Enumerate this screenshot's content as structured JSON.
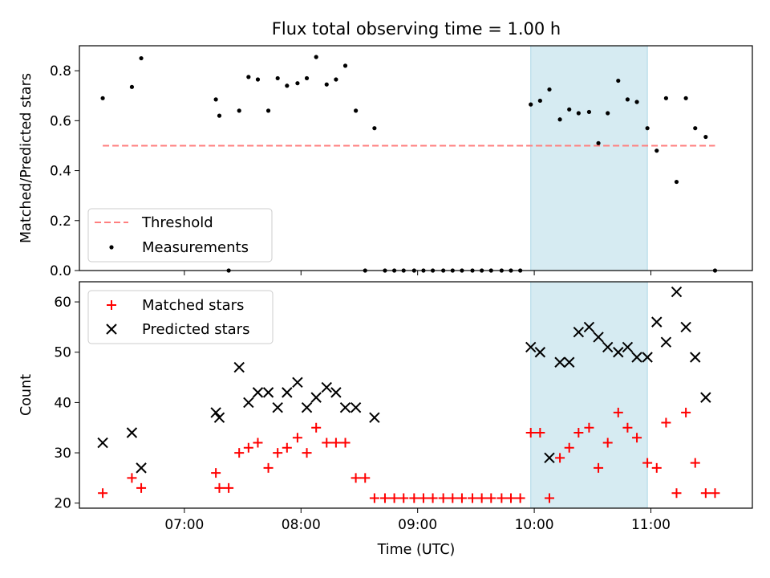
{
  "figure": {
    "title": "Flux total observing time = 1.00 h",
    "xlabel": "Time (UTC)",
    "shade_color": "#add8e6",
    "threshold_color": "#ff7f7f",
    "measurement_color": "#000000",
    "matched_color": "#ff0000",
    "predicted_color": "#000000"
  },
  "chart_data": [
    {
      "type": "scatter",
      "panel": "top",
      "ylabel": "Matched/Predicted stars",
      "ylim": [
        0,
        0.9
      ],
      "yticks": [
        0.0,
        0.2,
        0.4,
        0.6,
        0.8
      ],
      "ytick_labels": [
        "0.0",
        "0.2",
        "0.4",
        "0.6",
        "0.8"
      ],
      "x_unit": "hours UTC",
      "xlim": [
        6.1,
        11.87
      ],
      "xticks": [
        7,
        8,
        9,
        10,
        11
      ],
      "xtick_labels": [
        "07:00",
        "08:00",
        "09:00",
        "10:00",
        "11:00"
      ],
      "shaded_interval": [
        9.97,
        10.97
      ],
      "threshold": {
        "name": "Threshold",
        "y": 0.5,
        "x_range": [
          6.3,
          11.55
        ],
        "style": "dashed"
      },
      "legend": {
        "position": "lower-left",
        "entries": [
          "Threshold",
          "Measurements"
        ]
      },
      "series": [
        {
          "name": "Measurements",
          "marker": "dot",
          "x": [
            6.3,
            6.55,
            6.63,
            7.27,
            7.3,
            7.38,
            7.47,
            7.55,
            7.63,
            7.72,
            7.8,
            7.88,
            7.97,
            8.05,
            8.13,
            8.22,
            8.3,
            8.38,
            8.47,
            8.55,
            8.63,
            8.72,
            8.8,
            8.88,
            8.97,
            9.05,
            9.13,
            9.22,
            9.3,
            9.38,
            9.47,
            9.55,
            9.63,
            9.72,
            9.8,
            9.88,
            9.97,
            10.05,
            10.13,
            10.22,
            10.3,
            10.38,
            10.47,
            10.55,
            10.63,
            10.72,
            10.8,
            10.88,
            10.97,
            11.05,
            11.13,
            11.22,
            11.3,
            11.38,
            11.47,
            11.55
          ],
          "y": [
            0.69,
            0.735,
            0.85,
            0.685,
            0.62,
            0.0,
            0.64,
            0.775,
            0.765,
            0.64,
            0.77,
            0.74,
            0.75,
            0.77,
            0.855,
            0.745,
            0.765,
            0.82,
            0.64,
            0.0,
            0.57,
            0.0,
            0.0,
            0.0,
            0.0,
            0.0,
            0.0,
            0.0,
            0.0,
            0.0,
            0.0,
            0.0,
            0.0,
            0.0,
            0.0,
            0.0,
            0.665,
            0.68,
            0.725,
            0.605,
            0.645,
            0.63,
            0.635,
            0.51,
            0.63,
            0.76,
            0.685,
            0.675,
            0.57,
            0.48,
            0.69,
            0.355,
            0.69,
            0.57,
            0.535,
            0.0
          ]
        }
      ]
    },
    {
      "type": "scatter",
      "panel": "bottom",
      "ylabel": "Count",
      "ylim": [
        19,
        64
      ],
      "yticks": [
        20,
        30,
        40,
        50,
        60
      ],
      "ytick_labels": [
        "20",
        "30",
        "40",
        "50",
        "60"
      ],
      "x_unit": "hours UTC",
      "xlim": [
        6.1,
        11.87
      ],
      "xticks": [
        7,
        8,
        9,
        10,
        11
      ],
      "xtick_labels": [
        "07:00",
        "08:00",
        "09:00",
        "10:00",
        "11:00"
      ],
      "shaded_interval": [
        9.97,
        10.97
      ],
      "legend": {
        "position": "top-left",
        "entries": [
          "Matched stars",
          "Predicted stars"
        ]
      },
      "series": [
        {
          "name": "Matched stars",
          "marker": "plus",
          "x": [
            6.3,
            6.55,
            6.63,
            7.27,
            7.3,
            7.38,
            7.47,
            7.55,
            7.63,
            7.72,
            7.8,
            7.88,
            7.97,
            8.05,
            8.13,
            8.22,
            8.3,
            8.38,
            8.47,
            8.55,
            8.63,
            8.72,
            8.8,
            8.88,
            8.97,
            9.05,
            9.13,
            9.22,
            9.3,
            9.38,
            9.47,
            9.55,
            9.63,
            9.72,
            9.8,
            9.88,
            9.97,
            10.05,
            10.13,
            10.22,
            10.3,
            10.38,
            10.47,
            10.55,
            10.63,
            10.72,
            10.8,
            10.88,
            10.97,
            11.05,
            11.13,
            11.22,
            11.3,
            11.38,
            11.47,
            11.55
          ],
          "y": [
            22,
            25,
            23,
            26,
            23,
            23,
            30,
            31,
            32,
            27,
            30,
            31,
            33,
            30,
            35,
            32,
            32,
            32,
            25,
            25,
            21,
            21,
            21,
            21,
            21,
            21,
            21,
            21,
            21,
            21,
            21,
            21,
            21,
            21,
            21,
            21,
            34,
            34,
            21,
            29,
            31,
            34,
            35,
            27,
            32,
            38,
            35,
            33,
            28,
            27,
            36,
            22,
            38,
            28,
            22,
            22
          ]
        },
        {
          "name": "Predicted stars",
          "marker": "x",
          "x": [
            6.3,
            6.55,
            6.63,
            7.27,
            7.3,
            7.47,
            7.55,
            7.63,
            7.72,
            7.8,
            7.88,
            7.97,
            8.05,
            8.13,
            8.22,
            8.3,
            8.38,
            8.47,
            8.63,
            9.97,
            10.05,
            10.13,
            10.22,
            10.3,
            10.38,
            10.47,
            10.55,
            10.63,
            10.72,
            10.8,
            10.88,
            10.97,
            11.05,
            11.13,
            11.22,
            11.3,
            11.38,
            11.47
          ],
          "y": [
            32,
            34,
            27,
            38,
            37,
            47,
            40,
            42,
            42,
            39,
            42,
            44,
            39,
            41,
            43,
            42,
            39,
            39,
            37,
            51,
            50,
            29,
            48,
            48,
            54,
            55,
            53,
            51,
            50,
            51,
            49,
            49,
            56,
            52,
            62,
            55,
            49,
            41
          ]
        }
      ]
    }
  ]
}
